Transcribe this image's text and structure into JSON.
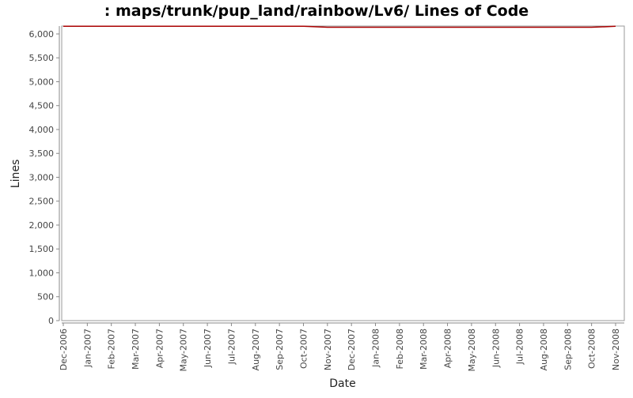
{
  "chart_data": {
    "type": "line",
    "title": ": maps/trunk/pup_land/rainbow/Lv6/ Lines of Code",
    "x_label": "Date",
    "y_label": "Lines",
    "categories": [
      "Dec-2006",
      "Jan-2007",
      "Feb-2007",
      "Mar-2007",
      "Apr-2007",
      "May-2007",
      "Jun-2007",
      "Jul-2007",
      "Aug-2007",
      "Sep-2007",
      "Oct-2007",
      "Nov-2007",
      "Dec-2007",
      "Jan-2008",
      "Feb-2008",
      "Mar-2008",
      "Apr-2008",
      "May-2008",
      "Jun-2008",
      "Jul-2008",
      "Aug-2008",
      "Sep-2008",
      "Oct-2008",
      "Nov-2008"
    ],
    "series": [
      {
        "name": "Lines",
        "color": "#aa0000",
        "values": [
          6160,
          6160,
          6160,
          6160,
          6160,
          6160,
          6160,
          6160,
          6160,
          6160,
          6160,
          6140,
          6140,
          6140,
          6140,
          6140,
          6140,
          6140,
          6140,
          6140,
          6140,
          6140,
          6140,
          6160
        ]
      }
    ],
    "ylim": [
      0,
      6165
    ],
    "yticks": [
      0,
      500,
      {
        "value": 1000,
        "label": "1,000"
      },
      {
        "value": 1500,
        "label": "1,500"
      },
      {
        "value": 2000,
        "label": "2,000"
      },
      {
        "value": 2500,
        "label": "2,500"
      },
      {
        "value": 3000,
        "label": "3,000"
      },
      {
        "value": 3500,
        "label": "3,500"
      },
      {
        "value": 4000,
        "label": "4,000"
      },
      {
        "value": 4500,
        "label": "4,500"
      },
      {
        "value": 5000,
        "label": "5,000"
      },
      {
        "value": 5500,
        "label": "5,500"
      },
      {
        "value": 6000,
        "label": "6,000"
      }
    ],
    "grid": false
  }
}
